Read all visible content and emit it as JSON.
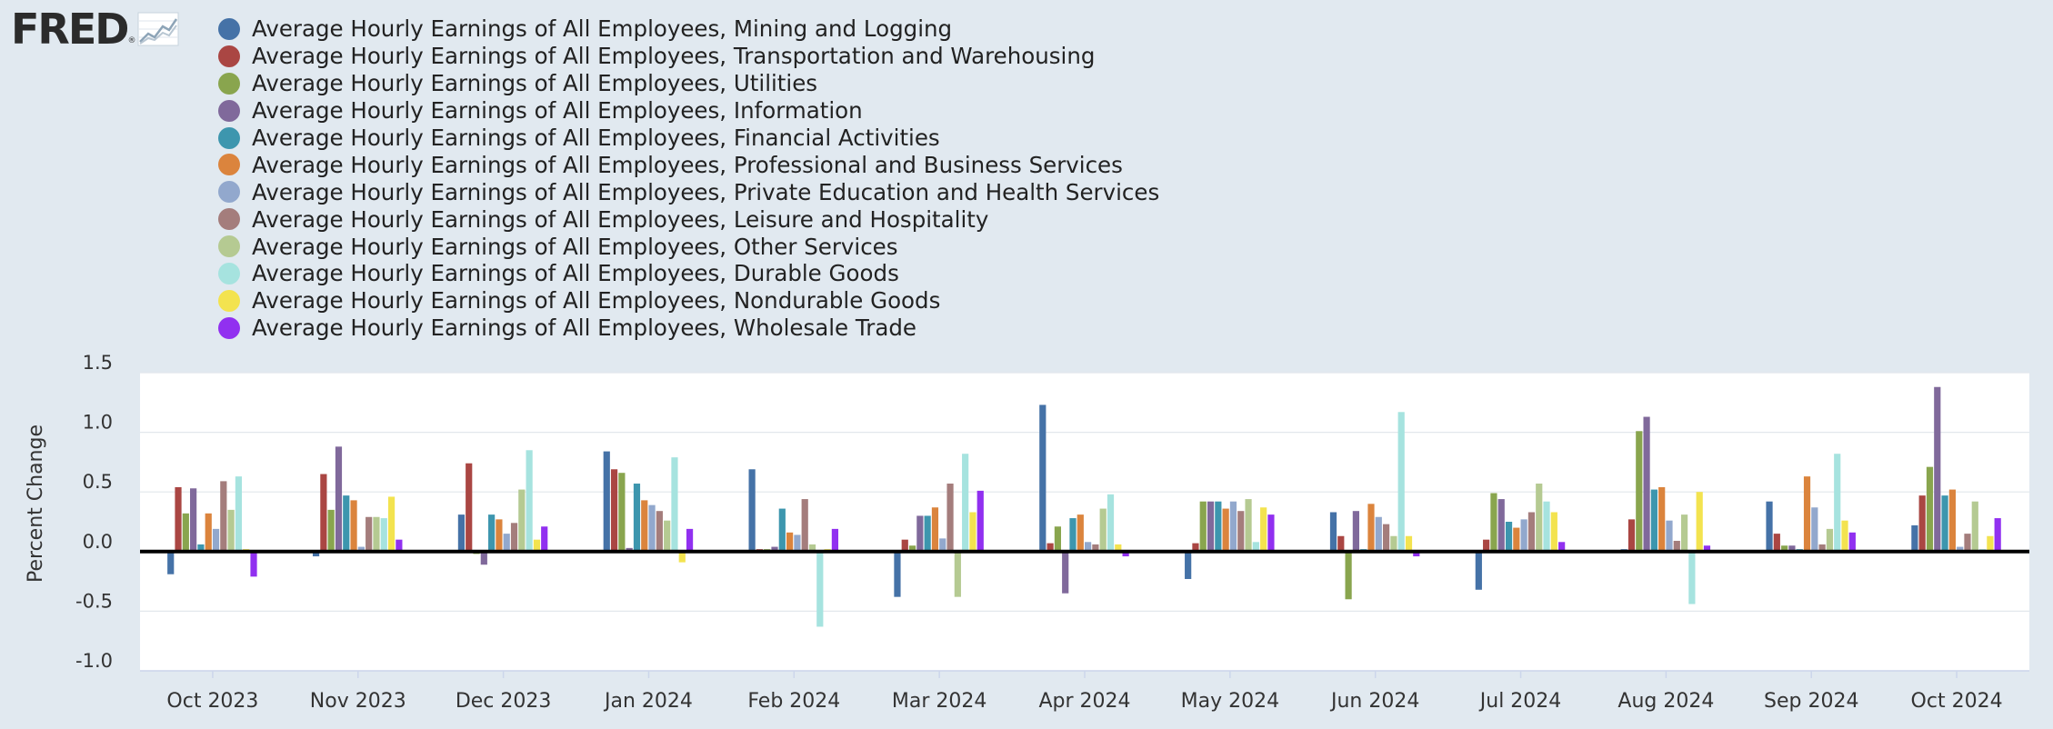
{
  "branding": {
    "logo_text": "FRED",
    "logo_mark": "®",
    "logo_icon": "line-graph-icon"
  },
  "chart_data": {
    "type": "bar",
    "title": "",
    "xlabel": "",
    "ylabel": "Percent Change",
    "ylim": [
      -1.0,
      1.5
    ],
    "yticks": [
      "1.5",
      "1.0",
      "0.5",
      "0.0",
      "-0.5",
      "-1.0"
    ],
    "grid": true,
    "legend_position": "top-left",
    "categories": [
      "Oct 2023",
      "Nov 2023",
      "Dec 2023",
      "Jan 2024",
      "Feb 2024",
      "Mar 2024",
      "Apr 2024",
      "May 2024",
      "Jun 2024",
      "Jul 2024",
      "Aug 2024",
      "Sep 2024",
      "Oct 2024"
    ],
    "series": [
      {
        "name": "Average Hourly Earnings of All Employees, Mining and Logging",
        "color": "#4572a7",
        "values": [
          -0.19,
          -0.04,
          0.31,
          0.84,
          0.69,
          -0.38,
          1.23,
          -0.23,
          0.33,
          -0.32,
          0.02,
          0.42,
          0.22
        ]
      },
      {
        "name": "Average Hourly Earnings of All Employees, Transportation and Warehousing",
        "color": "#aa4643",
        "values": [
          0.54,
          0.65,
          0.74,
          0.69,
          0.02,
          0.1,
          0.07,
          0.07,
          0.13,
          0.1,
          0.27,
          0.15,
          0.47
        ]
      },
      {
        "name": "Average Hourly Earnings of All Employees, Utilities",
        "color": "#89a54e",
        "values": [
          0.32,
          0.35,
          -0.02,
          0.66,
          0.02,
          0.05,
          0.21,
          0.42,
          -0.4,
          0.49,
          1.01,
          0.05,
          0.71
        ]
      },
      {
        "name": "Average Hourly Earnings of All Employees, Information",
        "color": "#80699b",
        "values": [
          0.53,
          0.88,
          -0.11,
          0.03,
          0.04,
          0.3,
          -0.35,
          0.42,
          0.34,
          0.44,
          1.13,
          0.05,
          1.38
        ]
      },
      {
        "name": "Average Hourly Earnings of All Employees, Financial Activities",
        "color": "#3d96ae",
        "values": [
          0.06,
          0.47,
          0.31,
          0.57,
          0.36,
          0.3,
          0.28,
          0.42,
          0.02,
          0.25,
          0.52,
          0.02,
          0.47
        ]
      },
      {
        "name": "Average Hourly Earnings of All Employees, Professional and Business Services",
        "color": "#db843d",
        "values": [
          0.32,
          0.43,
          0.27,
          0.43,
          0.16,
          0.37,
          0.31,
          0.36,
          0.4,
          0.2,
          0.54,
          0.63,
          0.52
        ]
      },
      {
        "name": "Average Hourly Earnings of All Employees, Private Education and Health Services",
        "color": "#92a8cd",
        "values": [
          0.19,
          0.04,
          0.15,
          0.39,
          0.14,
          0.11,
          0.08,
          0.42,
          0.29,
          0.27,
          0.26,
          0.37,
          0.04
        ]
      },
      {
        "name": "Average Hourly Earnings of All Employees, Leisure and Hospitality",
        "color": "#a47d7c",
        "values": [
          0.59,
          0.29,
          0.24,
          0.34,
          0.44,
          0.57,
          0.06,
          0.34,
          0.23,
          0.33,
          0.09,
          0.06,
          0.15
        ]
      },
      {
        "name": "Average Hourly Earnings of All Employees, Other Services",
        "color": "#b5ca92",
        "values": [
          0.35,
          0.29,
          0.52,
          0.26,
          0.06,
          -0.38,
          0.36,
          0.44,
          0.13,
          0.57,
          0.31,
          0.19,
          0.42
        ]
      },
      {
        "name": "Average Hourly Earnings of All Employees, Durable Goods",
        "color": "#a6e3df",
        "values": [
          0.63,
          0.28,
          0.85,
          0.79,
          -0.63,
          0.82,
          0.48,
          0.08,
          1.17,
          0.42,
          -0.44,
          0.82,
          0.02
        ]
      },
      {
        "name": "Average Hourly Earnings of All Employees, Nondurable Goods",
        "color": "#f3e34f",
        "values": [
          0.02,
          0.46,
          0.1,
          -0.09,
          0.02,
          0.33,
          0.06,
          0.37,
          0.13,
          0.33,
          0.5,
          0.26,
          0.13
        ]
      },
      {
        "name": "Average Hourly Earnings of All Employees, Wholesale Trade",
        "color": "#9130f0",
        "values": [
          -0.21,
          0.1,
          0.21,
          0.19,
          0.19,
          0.51,
          -0.04,
          0.31,
          -0.04,
          0.08,
          0.05,
          0.16,
          0.28
        ]
      }
    ]
  }
}
